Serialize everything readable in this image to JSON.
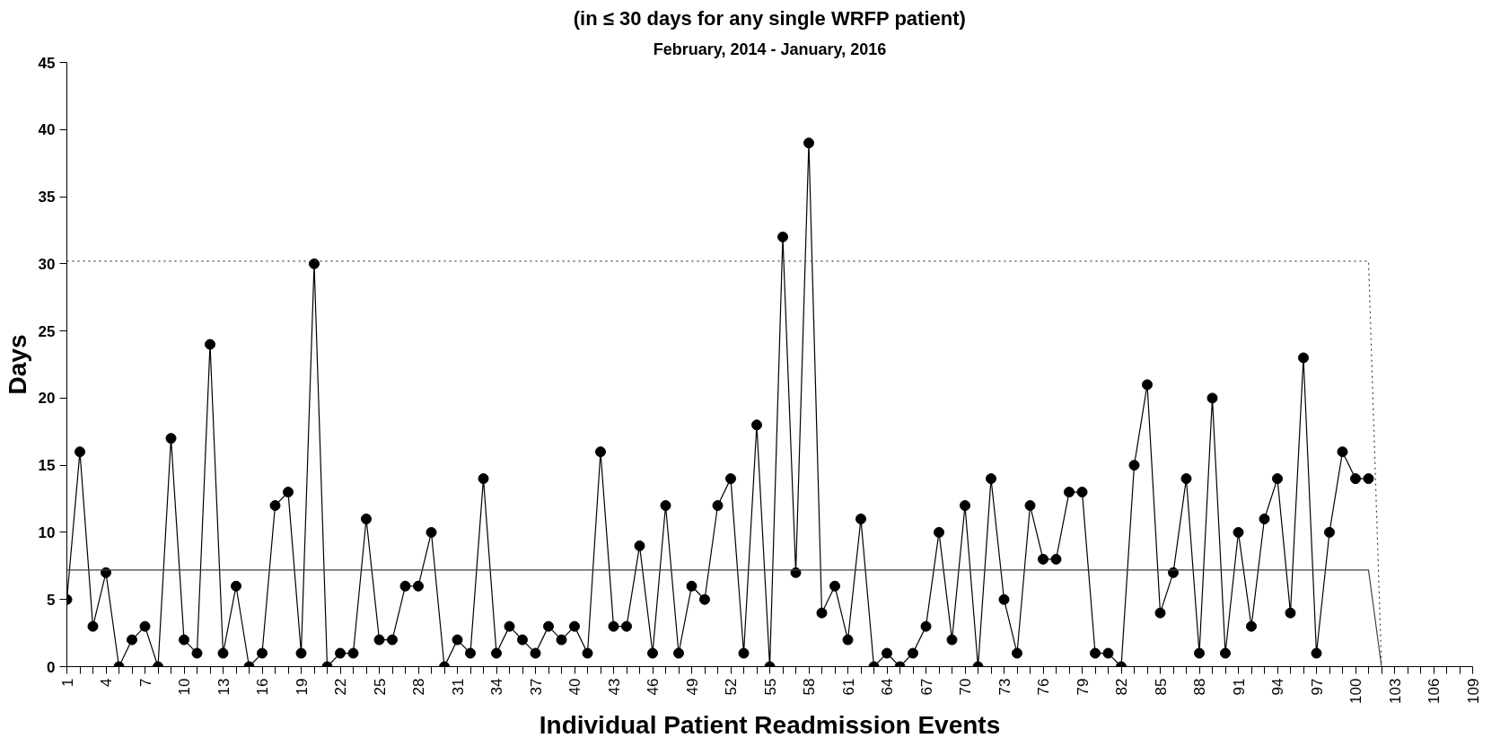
{
  "chart_data": {
    "type": "line",
    "title": "(in ≤ 30 days for any single WRFP patient)",
    "subtitle": "February, 2014 - January, 2016",
    "xlabel": "Individual Patient Readmission Events",
    "ylabel": "Days",
    "x": [
      1,
      2,
      3,
      4,
      5,
      6,
      7,
      8,
      9,
      10,
      11,
      12,
      13,
      14,
      15,
      16,
      17,
      18,
      19,
      20,
      21,
      22,
      23,
      24,
      25,
      26,
      27,
      28,
      29,
      30,
      31,
      32,
      33,
      34,
      35,
      36,
      37,
      38,
      39,
      40,
      41,
      42,
      43,
      44,
      45,
      46,
      47,
      48,
      49,
      50,
      51,
      52,
      53,
      54,
      55,
      56,
      57,
      58,
      59,
      60,
      61,
      62,
      63,
      64,
      65,
      66,
      67,
      68,
      69,
      70,
      71,
      72,
      73,
      74,
      75,
      76,
      77,
      78,
      79,
      80,
      81,
      82,
      83,
      84,
      85,
      86,
      87,
      88,
      89,
      90,
      91,
      92,
      93,
      94,
      95,
      96,
      97,
      98,
      99,
      100,
      101
    ],
    "series": [
      {
        "color": "#000000",
        "marker": "circle",
        "line_style": "solid",
        "values": [
          5,
          16,
          3,
          7,
          0,
          2,
          3,
          0,
          17,
          2,
          1,
          24,
          1,
          6,
          0,
          1,
          12,
          13,
          1,
          30,
          0,
          1,
          1,
          11,
          2,
          2,
          6,
          6,
          10,
          0,
          2,
          1,
          14,
          1,
          3,
          2,
          1,
          3,
          2,
          3,
          1,
          16,
          3,
          3,
          9,
          1,
          12,
          1,
          6,
          5,
          12,
          14,
          1,
          18,
          0,
          32,
          7,
          39,
          4,
          6,
          2,
          11,
          0,
          1,
          0,
          1,
          3,
          10,
          2,
          12,
          0,
          14,
          5,
          1,
          12,
          8,
          8,
          13,
          13,
          1,
          1,
          0,
          15,
          21,
          4,
          7,
          14,
          1,
          20,
          1,
          10,
          3,
          11,
          14,
          4,
          23,
          1,
          10,
          16,
          14,
          14
        ]
      },
      {
        "color": "#404040",
        "marker": "none",
        "line_style": "solid",
        "x": [
          1,
          101,
          102
        ],
        "values": [
          7.2,
          7.2,
          0
        ]
      },
      {
        "color": "#404040",
        "marker": "none",
        "line_style": "dotted",
        "x": [
          1,
          101,
          102
        ],
        "values": [
          30.2,
          30.2,
          0
        ]
      }
    ],
    "xlim": [
      1,
      109
    ],
    "ylim": [
      0,
      45
    ],
    "yticks": [
      0,
      5,
      10,
      15,
      20,
      25,
      30,
      35,
      40,
      45
    ],
    "xticks": [
      1,
      {
        "value": 2,
        "label": null
      },
      {
        "value": 3,
        "label": null
      },
      4,
      {
        "value": 5,
        "label": null
      },
      {
        "value": 6,
        "label": null
      },
      7,
      {
        "value": 8,
        "label": null
      },
      {
        "value": 9,
        "label": null
      },
      10,
      {
        "value": 11,
        "label": null
      },
      {
        "value": 12,
        "label": null
      },
      13,
      {
        "value": 14,
        "label": null
      },
      {
        "value": 15,
        "label": null
      },
      16,
      {
        "value": 17,
        "label": null
      },
      {
        "value": 18,
        "label": null
      },
      19,
      {
        "value": 20,
        "label": null
      },
      {
        "value": 21,
        "label": null
      },
      22,
      {
        "value": 23,
        "label": null
      },
      {
        "value": 24,
        "label": null
      },
      25,
      {
        "value": 26,
        "label": null
      },
      {
        "value": 27,
        "label": null
      },
      28,
      {
        "value": 29,
        "label": null
      },
      {
        "value": 30,
        "label": null
      },
      31,
      {
        "value": 32,
        "label": null
      },
      {
        "value": 33,
        "label": null
      },
      34,
      {
        "value": 35,
        "label": null
      },
      {
        "value": 36,
        "label": null
      },
      37,
      {
        "value": 38,
        "label": null
      },
      {
        "value": 39,
        "label": null
      },
      40,
      {
        "value": 41,
        "label": null
      },
      {
        "value": 42,
        "label": null
      },
      43,
      {
        "value": 44,
        "label": null
      },
      {
        "value": 45,
        "label": null
      },
      46,
      {
        "value": 47,
        "label": null
      },
      {
        "value": 48,
        "label": null
      },
      49,
      {
        "value": 50,
        "label": null
      },
      {
        "value": 51,
        "label": null
      },
      52,
      {
        "value": 53,
        "label": null
      },
      {
        "value": 54,
        "label": null
      },
      55,
      {
        "value": 56,
        "label": null
      },
      {
        "value": 57,
        "label": null
      },
      58,
      {
        "value": 59,
        "label": null
      },
      {
        "value": 60,
        "label": null
      },
      61,
      {
        "value": 62,
        "label": null
      },
      {
        "value": 63,
        "label": null
      },
      64,
      {
        "value": 65,
        "label": null
      },
      {
        "value": 66,
        "label": null
      },
      67,
      {
        "value": 68,
        "label": null
      },
      {
        "value": 69,
        "label": null
      },
      70,
      {
        "value": 71,
        "label": null
      },
      {
        "value": 72,
        "label": null
      },
      73,
      {
        "value": 74,
        "label": null
      },
      {
        "value": 75,
        "label": null
      },
      76,
      {
        "value": 77,
        "label": null
      },
      {
        "value": 78,
        "label": null
      },
      79,
      {
        "value": 80,
        "label": null
      },
      {
        "value": 81,
        "label": null
      },
      82,
      {
        "value": 83,
        "label": null
      },
      {
        "value": 84,
        "label": null
      },
      85,
      {
        "value": 86,
        "label": null
      },
      {
        "value": 87,
        "label": null
      },
      88,
      {
        "value": 89,
        "label": null
      },
      {
        "value": 90,
        "label": null
      },
      91,
      {
        "value": 92,
        "label": null
      },
      {
        "value": 93,
        "label": null
      },
      94,
      {
        "value": 95,
        "label": null
      },
      {
        "value": 96,
        "label": null
      },
      97,
      {
        "value": 98,
        "label": null
      },
      {
        "value": 99,
        "label": null
      },
      100,
      {
        "value": 101,
        "label": null
      },
      {
        "value": 102,
        "label": null
      },
      103,
      {
        "value": 104,
        "label": null
      },
      {
        "value": 105,
        "label": null
      },
      106,
      {
        "value": 107,
        "label": null
      },
      {
        "value": 108,
        "label": null
      },
      109
    ],
    "grid": false
  }
}
